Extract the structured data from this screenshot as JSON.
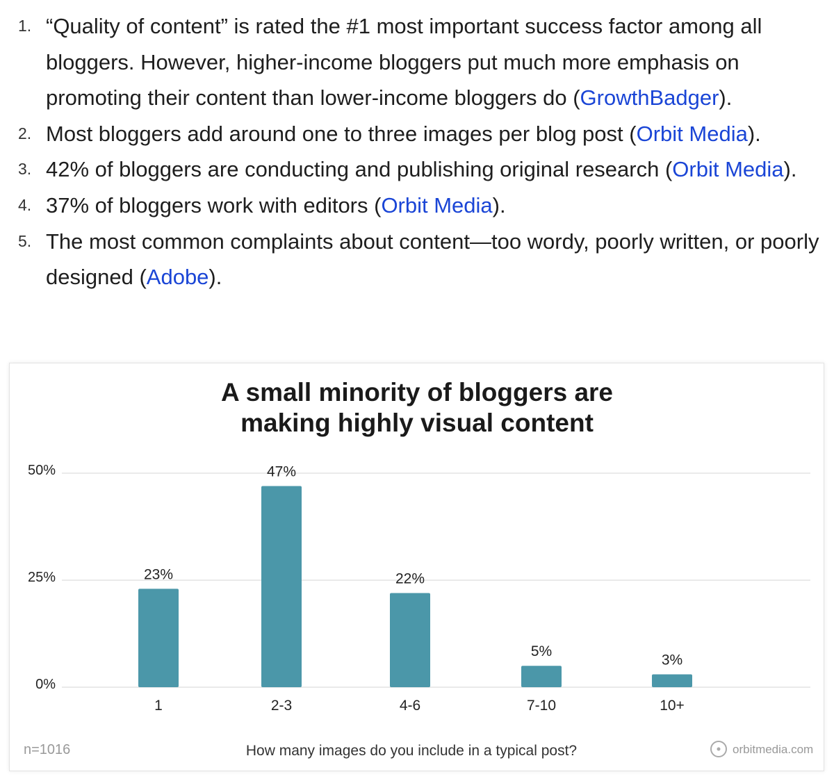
{
  "list": {
    "items": [
      {
        "number": "1.",
        "before": "“Quality of content” is rated the #1 most important success factor among all bloggers. However, higher-income bloggers put much more emphasis on promoting their content than lower-income bloggers do (",
        "link": "GrowthBadger",
        "after": ")."
      },
      {
        "number": "2.",
        "before": "Most bloggers add around one to three images per blog post (",
        "link": "Orbit Media",
        "after": ")."
      },
      {
        "number": "3.",
        "before": "42% of bloggers are conducting and publishing original research (",
        "link": "Orbit Media",
        "after": ")."
      },
      {
        "number": "4.",
        "before": "37% of bloggers work with editors (",
        "link": "Orbit Media",
        "after": ")."
      },
      {
        "number": "5.",
        "before": "The most common complaints about content—too wordy, poorly written, or poorly designed (",
        "link": "Adobe",
        "after": ")."
      }
    ]
  },
  "chart_data": {
    "type": "bar",
    "title_lines": [
      "A small minority of bloggers are",
      "making highly visual content"
    ],
    "categories": [
      "1",
      "2-3",
      "4-6",
      "7-10",
      "10+"
    ],
    "values": [
      23,
      47,
      22,
      5,
      3
    ],
    "value_labels": [
      "23%",
      "47%",
      "22%",
      "5%",
      "3%"
    ],
    "ylim": [
      0,
      50
    ],
    "yticks": [
      {
        "value": 0,
        "label": "0%"
      },
      {
        "value": 25,
        "label": "25%"
      },
      {
        "value": 50,
        "label": "50%"
      }
    ],
    "grid": true,
    "xlabel": "How many images do you include in a typical post?",
    "sample_note": "n=1016",
    "source": "orbitmedia.com",
    "bar_color": "#4b97a9"
  }
}
